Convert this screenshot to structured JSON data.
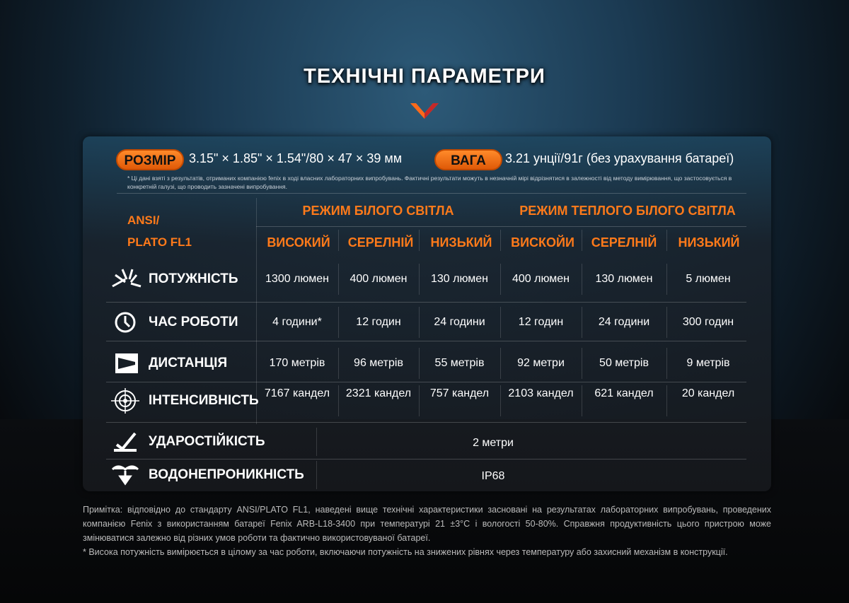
{
  "title": "ТЕХНІЧНІ ПАРАМЕТРИ",
  "size": {
    "label": "РОЗМІР",
    "value": "3.15\" × 1.85\" × 1.54\"/80 × 47 × 39 мм"
  },
  "weight": {
    "label": "ВАГА",
    "value": "3.21 унції/91г (без урахування батареї)"
  },
  "disclaimer": "* Ці дані взяті з результатів, отриманих компанією fenix в ході власних лабораторних випробувань. Фактичні результати можуть в незначній мірі відрізнятися в залежності від методу вимірювання, що застосовується в конкретній галузі, що проводить зазначені випробування.",
  "table": {
    "standard": "ANSI/ PLATO FL1",
    "groups": [
      "РЕЖИМ БІЛОГО СВІТЛА",
      "РЕЖИМ ТЕПЛОГО БІЛОГО СВІТЛА"
    ],
    "modes": [
      "ВИСОКИЙ",
      "СЕРЕЛНІЙ",
      "НИЗЬКИЙ",
      "ВИСКОЙИ",
      "СЕРЕЛНІЙ",
      "НИЗЬКИЙ"
    ],
    "rows": [
      {
        "icon": "burst-icon",
        "label": "ПОТУЖНІСТЬ",
        "values": [
          "1300 люмен",
          "400 люмен",
          "130 люмен",
          "400 люмен",
          "130 люмен",
          "5 люмен"
        ]
      },
      {
        "icon": "clock-icon",
        "label": "ЧАС РОБОТИ",
        "values": [
          "4 години*",
          "12 годин",
          "24 години",
          "12 годин",
          "24 години",
          "300 годин"
        ]
      },
      {
        "icon": "beam-icon",
        "label": "ДИСТАНЦІЯ",
        "values": [
          "170 метрів",
          "96 метрів",
          "55 метрів",
          "92 метри",
          "50 метрів",
          "9 метрів"
        ]
      },
      {
        "icon": "target-icon",
        "label": "ІНТЕНСИВНІСТЬ",
        "values": [
          "7167 кандел",
          "2321 кандел",
          "757 кандел",
          "2103 кандел",
          "621 кандел",
          "20 кандел"
        ]
      }
    ],
    "impact": {
      "icon": "impact-icon",
      "label": "УДАРОСТІЙКІСТЬ",
      "value": "2 метри"
    },
    "water": {
      "icon": "water-icon",
      "label": "ВОДОНЕПРОНИКНІСТЬ",
      "value": "IP68"
    }
  },
  "notes": [
    "Примітка: відповідно до стандарту ANSI/PLATO FL1, наведені вище технічні характеристики засновані на результатах лабораторних випробувань, проведених компанією Fenix з використанням батареї Fenix ARB-L18-3400 при температурі 21 ±3°C і вологості 50-80%. Справжня продуктивність цього пристрою може змінюватися залежно від різних умов роботи та фактично використовуваної батареї.",
    "* Висока потужність вимірюється в цілому за час роботи, включаючи потужність на знижених рівнях через температуру або захисний механізм в конструкції."
  ],
  "colors": {
    "accent": "#ff7a1a"
  }
}
